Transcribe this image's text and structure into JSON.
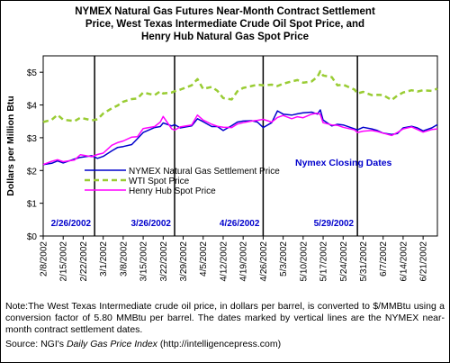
{
  "chart_data": {
    "type": "line",
    "title_lines": [
      "NYMEX Natural Gas Futures Near-Month Contract Settlement",
      "Price, West Texas Intermediate Crude Oil Spot Price, and",
      "Henry Hub Natural Gas Spot Price"
    ],
    "ylabel": "Dollars per Million Btu",
    "ylim": [
      0,
      5.5
    ],
    "y_ticks": [
      "$0",
      "$1",
      "$2",
      "$3",
      "$4",
      "$5"
    ],
    "x_start": "2002-02-08",
    "x_end": "2002-06-26",
    "x_ticks": [
      "2/8/2002",
      "2/15/2002",
      "2/22/2002",
      "3/1/2002",
      "3/8/2002",
      "3/15/2002",
      "3/22/2002",
      "3/29/2002",
      "4/5/2002",
      "4/12/2002",
      "4/19/2002",
      "4/26/2002",
      "5/3/2002",
      "5/10/2002",
      "5/17/2002",
      "5/24/2002",
      "5/31/2002",
      "6/7/2002",
      "6/14/2002",
      "6/21/2002"
    ],
    "closing_dates": [
      "2/26/2002",
      "3/26/2002",
      "4/26/2002",
      "5/29/2002"
    ],
    "closing_date_values": [
      "2002-02-26",
      "2002-03-26",
      "2002-04-26",
      "2002-05-29"
    ],
    "closing_dates_label": "Nymex Closing Dates",
    "grid": false,
    "legend_position": "center-left",
    "colors": {
      "nymex": "#0000cc",
      "wti": "#99cc33",
      "henry": "#ff00ff",
      "annotation": "#0000cc"
    },
    "series": [
      {
        "name": "NYMEX Natural Gas Settlement Price",
        "key": "nymex",
        "style": "solid",
        "points": [
          [
            "2002-02-08",
            2.18
          ],
          [
            "2002-02-11",
            2.22
          ],
          [
            "2002-02-13",
            2.29
          ],
          [
            "2002-02-15",
            2.23
          ],
          [
            "2002-02-19",
            2.35
          ],
          [
            "2002-02-21",
            2.4
          ],
          [
            "2002-02-25",
            2.45
          ],
          [
            "2002-02-27",
            2.37
          ],
          [
            "2002-03-01",
            2.43
          ],
          [
            "2002-03-04",
            2.6
          ],
          [
            "2002-03-06",
            2.7
          ],
          [
            "2002-03-08",
            2.73
          ],
          [
            "2002-03-11",
            2.79
          ],
          [
            "2002-03-13",
            2.97
          ],
          [
            "2002-03-15",
            3.16
          ],
          [
            "2002-03-19",
            3.31
          ],
          [
            "2002-03-21",
            3.34
          ],
          [
            "2002-03-22",
            3.45
          ],
          [
            "2002-03-25",
            3.36
          ],
          [
            "2002-03-26",
            3.4
          ],
          [
            "2002-03-28",
            3.3
          ],
          [
            "2002-04-01",
            3.36
          ],
          [
            "2002-04-03",
            3.58
          ],
          [
            "2002-04-05",
            3.49
          ],
          [
            "2002-04-08",
            3.34
          ],
          [
            "2002-04-10",
            3.34
          ],
          [
            "2002-04-12",
            3.22
          ],
          [
            "2002-04-15",
            3.37
          ],
          [
            "2002-04-17",
            3.48
          ],
          [
            "2002-04-19",
            3.51
          ],
          [
            "2002-04-22",
            3.52
          ],
          [
            "2002-04-24",
            3.48
          ],
          [
            "2002-04-26",
            3.31
          ],
          [
            "2002-04-29",
            3.46
          ],
          [
            "2002-05-01",
            3.82
          ],
          [
            "2002-05-03",
            3.72
          ],
          [
            "2002-05-06",
            3.69
          ],
          [
            "2002-05-08",
            3.73
          ],
          [
            "2002-05-10",
            3.76
          ],
          [
            "2002-05-13",
            3.78
          ],
          [
            "2002-05-15",
            3.72
          ],
          [
            "2002-05-16",
            3.85
          ],
          [
            "2002-05-17",
            3.54
          ],
          [
            "2002-05-20",
            3.36
          ],
          [
            "2002-05-22",
            3.41
          ],
          [
            "2002-05-24",
            3.39
          ],
          [
            "2002-05-28",
            3.27
          ],
          [
            "2002-05-29",
            3.24
          ],
          [
            "2002-05-31",
            3.32
          ],
          [
            "2002-06-03",
            3.27
          ],
          [
            "2002-06-05",
            3.22
          ],
          [
            "2002-06-07",
            3.14
          ],
          [
            "2002-06-10",
            3.1
          ],
          [
            "2002-06-12",
            3.13
          ],
          [
            "2002-06-14",
            3.3
          ],
          [
            "2002-06-17",
            3.35
          ],
          [
            "2002-06-19",
            3.3
          ],
          [
            "2002-06-21",
            3.21
          ],
          [
            "2002-06-24",
            3.3
          ],
          [
            "2002-06-26",
            3.4
          ]
        ]
      },
      {
        "name": "WTI Spot Price",
        "key": "wti",
        "style": "dashed",
        "points": [
          [
            "2002-02-08",
            3.48
          ],
          [
            "2002-02-11",
            3.55
          ],
          [
            "2002-02-13",
            3.7
          ],
          [
            "2002-02-15",
            3.55
          ],
          [
            "2002-02-19",
            3.51
          ],
          [
            "2002-02-21",
            3.61
          ],
          [
            "2002-02-25",
            3.53
          ],
          [
            "2002-02-27",
            3.56
          ],
          [
            "2002-03-01",
            3.74
          ],
          [
            "2002-03-04",
            3.9
          ],
          [
            "2002-03-06",
            3.98
          ],
          [
            "2002-03-08",
            4.1
          ],
          [
            "2002-03-11",
            4.18
          ],
          [
            "2002-03-13",
            4.2
          ],
          [
            "2002-03-15",
            4.38
          ],
          [
            "2002-03-19",
            4.3
          ],
          [
            "2002-03-21",
            4.42
          ],
          [
            "2002-03-22",
            4.35
          ],
          [
            "2002-03-25",
            4.38
          ],
          [
            "2002-03-26",
            4.42
          ],
          [
            "2002-03-28",
            4.47
          ],
          [
            "2002-04-01",
            4.6
          ],
          [
            "2002-04-03",
            4.79
          ],
          [
            "2002-04-05",
            4.49
          ],
          [
            "2002-04-08",
            4.55
          ],
          [
            "2002-04-10",
            4.43
          ],
          [
            "2002-04-12",
            4.21
          ],
          [
            "2002-04-15",
            4.17
          ],
          [
            "2002-04-17",
            4.42
          ],
          [
            "2002-04-19",
            4.52
          ],
          [
            "2002-04-22",
            4.58
          ],
          [
            "2002-04-24",
            4.62
          ],
          [
            "2002-04-26",
            4.6
          ],
          [
            "2002-04-29",
            4.62
          ],
          [
            "2002-05-01",
            4.58
          ],
          [
            "2002-05-03",
            4.65
          ],
          [
            "2002-05-06",
            4.72
          ],
          [
            "2002-05-08",
            4.76
          ],
          [
            "2002-05-10",
            4.68
          ],
          [
            "2002-05-13",
            4.72
          ],
          [
            "2002-05-15",
            4.86
          ],
          [
            "2002-05-16",
            5.03
          ],
          [
            "2002-05-17",
            4.9
          ],
          [
            "2002-05-20",
            4.85
          ],
          [
            "2002-05-22",
            4.6
          ],
          [
            "2002-05-24",
            4.62
          ],
          [
            "2002-05-28",
            4.47
          ],
          [
            "2002-05-29",
            4.35
          ],
          [
            "2002-05-31",
            4.4
          ],
          [
            "2002-06-03",
            4.3
          ],
          [
            "2002-06-05",
            4.31
          ],
          [
            "2002-06-07",
            4.3
          ],
          [
            "2002-06-10",
            4.15
          ],
          [
            "2002-06-12",
            4.29
          ],
          [
            "2002-06-14",
            4.38
          ],
          [
            "2002-06-17",
            4.45
          ],
          [
            "2002-06-19",
            4.41
          ],
          [
            "2002-06-21",
            4.45
          ],
          [
            "2002-06-24",
            4.43
          ],
          [
            "2002-06-26",
            4.5
          ]
        ]
      },
      {
        "name": "Henry Hub Spot Price",
        "key": "henry",
        "style": "solid",
        "points": [
          [
            "2002-02-08",
            2.18
          ],
          [
            "2002-02-11",
            2.28
          ],
          [
            "2002-02-13",
            2.33
          ],
          [
            "2002-02-15",
            2.27
          ],
          [
            "2002-02-19",
            2.32
          ],
          [
            "2002-02-21",
            2.48
          ],
          [
            "2002-02-25",
            2.42
          ],
          [
            "2002-02-27",
            2.49
          ],
          [
            "2002-03-01",
            2.53
          ],
          [
            "2002-03-04",
            2.77
          ],
          [
            "2002-03-06",
            2.85
          ],
          [
            "2002-03-08",
            2.9
          ],
          [
            "2002-03-11",
            3.02
          ],
          [
            "2002-03-13",
            3.03
          ],
          [
            "2002-03-15",
            3.28
          ],
          [
            "2002-03-19",
            3.34
          ],
          [
            "2002-03-21",
            3.48
          ],
          [
            "2002-03-22",
            3.65
          ],
          [
            "2002-03-25",
            3.27
          ],
          [
            "2002-03-26",
            3.23
          ],
          [
            "2002-03-28",
            3.33
          ],
          [
            "2002-04-01",
            3.39
          ],
          [
            "2002-04-03",
            3.69
          ],
          [
            "2002-04-05",
            3.54
          ],
          [
            "2002-04-08",
            3.41
          ],
          [
            "2002-04-10",
            3.35
          ],
          [
            "2002-04-12",
            3.32
          ],
          [
            "2002-04-15",
            3.31
          ],
          [
            "2002-04-17",
            3.42
          ],
          [
            "2002-04-19",
            3.46
          ],
          [
            "2002-04-22",
            3.51
          ],
          [
            "2002-04-24",
            3.53
          ],
          [
            "2002-04-26",
            3.56
          ],
          [
            "2002-04-29",
            3.48
          ],
          [
            "2002-05-01",
            3.62
          ],
          [
            "2002-05-03",
            3.68
          ],
          [
            "2002-05-06",
            3.58
          ],
          [
            "2002-05-08",
            3.64
          ],
          [
            "2002-05-10",
            3.61
          ],
          [
            "2002-05-13",
            3.72
          ],
          [
            "2002-05-15",
            3.75
          ],
          [
            "2002-05-16",
            3.71
          ],
          [
            "2002-05-17",
            3.46
          ],
          [
            "2002-05-20",
            3.39
          ],
          [
            "2002-05-22",
            3.38
          ],
          [
            "2002-05-24",
            3.32
          ],
          [
            "2002-05-28",
            3.24
          ],
          [
            "2002-05-29",
            3.16
          ],
          [
            "2002-05-31",
            3.2
          ],
          [
            "2002-06-03",
            3.22
          ],
          [
            "2002-06-05",
            3.19
          ],
          [
            "2002-06-07",
            3.14
          ],
          [
            "2002-06-10",
            3.07
          ],
          [
            "2002-06-12",
            3.16
          ],
          [
            "2002-06-14",
            3.27
          ],
          [
            "2002-06-17",
            3.33
          ],
          [
            "2002-06-19",
            3.25
          ],
          [
            "2002-06-21",
            3.17
          ],
          [
            "2002-06-24",
            3.25
          ],
          [
            "2002-06-26",
            3.27
          ]
        ]
      }
    ]
  },
  "note": {
    "text": "Note:The West Texas Intermediate crude oil price, in dollars per barrel, is converted to $/MMBtu using a conversion factor of 5.80 MMBtu per barrel. The dates marked by vertical lines are the NYMEX near-month contract settlement dates.",
    "source_prefix": "Source:  NGI's ",
    "source_italic": "Daily Gas Price Index",
    "source_suffix": " (http://intelligencepress.com)"
  }
}
